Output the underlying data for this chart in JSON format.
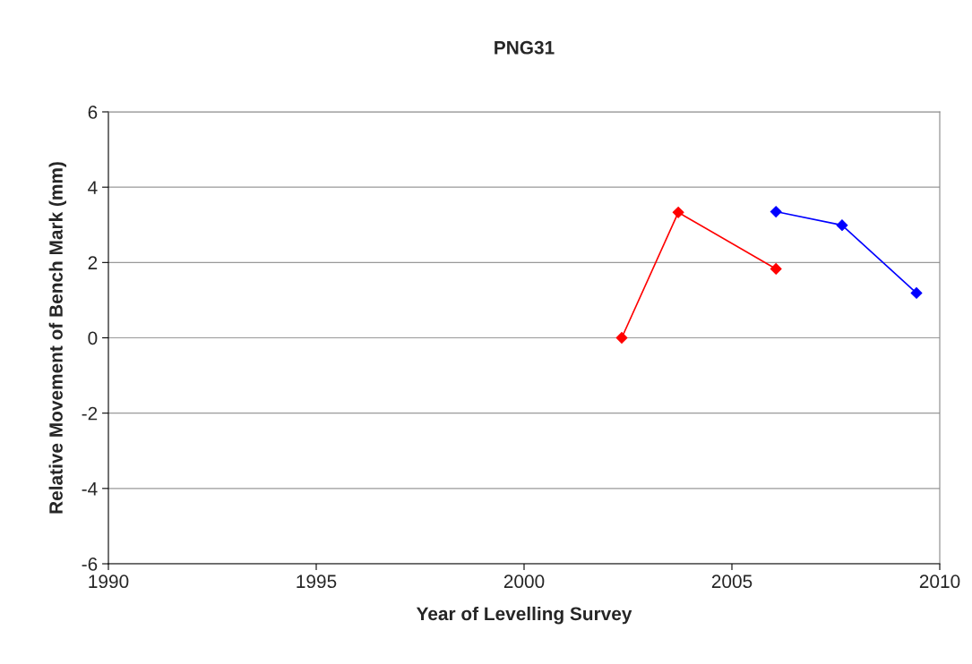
{
  "chart_data": {
    "type": "line",
    "title": "PNG31",
    "xlabel": "Year of Levelling Survey",
    "ylabel": "Relative Movement of Bench Mark (mm)",
    "series": [
      {
        "color": "#ff0000",
        "x": [
          2002.35,
          2003.71,
          2006.06
        ],
        "values": [
          0,
          3.33,
          1.83
        ]
      },
      {
        "color": "#0000ff",
        "x": [
          2006.06,
          2007.65,
          2009.44
        ],
        "values": [
          3.35,
          2.99,
          1.19
        ]
      }
    ],
    "xlim": [
      1990,
      2010
    ],
    "xticks": [
      1990,
      1995,
      2000,
      2005,
      2010
    ],
    "ylim": [
      -6,
      6
    ],
    "yticks": [
      -6,
      -4,
      -2,
      0,
      2,
      4,
      6
    ],
    "grid": "y",
    "marker": "diamond",
    "line_style": "solid",
    "legend": false
  }
}
